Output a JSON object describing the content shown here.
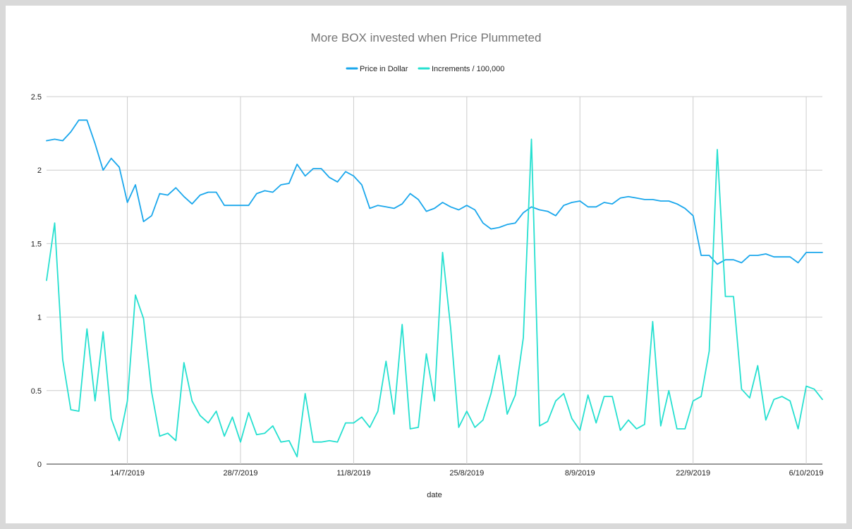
{
  "chart_data": {
    "type": "line",
    "title": "More BOX invested when Price Plummeted",
    "xlabel": "date",
    "ylabel": "",
    "ylim": [
      0,
      2.5
    ],
    "yticks": [
      "0",
      "0.5",
      "1",
      "1.5",
      "2",
      "2.5"
    ],
    "xtick_labels": [
      "14/7/2019",
      "28/7/2019",
      "11/8/2019",
      "25/8/2019",
      "8/9/2019",
      "22/9/2019",
      "6/10/2019"
    ],
    "xtick_positions": [
      10,
      24,
      38,
      52,
      66,
      80,
      94
    ],
    "x_start": "4/7/2019",
    "x_step_days": 1,
    "legend_position": "top",
    "grid": true,
    "series": [
      {
        "name": "Price in Dollar",
        "color": "#1aa7ec",
        "values": [
          2.2,
          2.21,
          2.2,
          2.26,
          2.34,
          2.34,
          2.18,
          2.0,
          2.08,
          2.02,
          1.78,
          1.9,
          1.65,
          1.69,
          1.84,
          1.83,
          1.88,
          1.82,
          1.77,
          1.83,
          1.85,
          1.85,
          1.76,
          1.76,
          1.76,
          1.76,
          1.84,
          1.86,
          1.85,
          1.9,
          1.91,
          2.04,
          1.96,
          2.01,
          2.01,
          1.95,
          1.92,
          1.99,
          1.96,
          1.9,
          1.74,
          1.76,
          1.75,
          1.74,
          1.77,
          1.84,
          1.8,
          1.72,
          1.74,
          1.78,
          1.75,
          1.73,
          1.76,
          1.73,
          1.64,
          1.6,
          1.61,
          1.63,
          1.64,
          1.71,
          1.75,
          1.73,
          1.72,
          1.69,
          1.76,
          1.78,
          1.79,
          1.75,
          1.75,
          1.78,
          1.77,
          1.81,
          1.82,
          1.81,
          1.8,
          1.8,
          1.79,
          1.79,
          1.77,
          1.74,
          1.69,
          1.42,
          1.42,
          1.36,
          1.39,
          1.39,
          1.37,
          1.42,
          1.42,
          1.43,
          1.41,
          1.41,
          1.41,
          1.37,
          1.44,
          1.44,
          1.44
        ]
      },
      {
        "name": "Increments / 100,000",
        "color": "#26e0d0",
        "values": [
          1.25,
          1.64,
          0.71,
          0.37,
          0.36,
          0.92,
          0.43,
          0.9,
          0.31,
          0.16,
          0.43,
          1.15,
          0.99,
          0.49,
          0.19,
          0.21,
          0.16,
          0.69,
          0.43,
          0.33,
          0.28,
          0.36,
          0.19,
          0.32,
          0.15,
          0.35,
          0.2,
          0.21,
          0.26,
          0.15,
          0.16,
          0.05,
          0.48,
          0.15,
          0.15,
          0.16,
          0.15,
          0.28,
          0.28,
          0.32,
          0.25,
          0.36,
          0.7,
          0.34,
          0.95,
          0.24,
          0.25,
          0.75,
          0.43,
          1.44,
          0.93,
          0.25,
          0.36,
          0.25,
          0.3,
          0.48,
          0.74,
          0.34,
          0.47,
          0.86,
          2.21,
          0.26,
          0.29,
          0.43,
          0.48,
          0.31,
          0.23,
          0.47,
          0.28,
          0.46,
          0.46,
          0.23,
          0.3,
          0.24,
          0.27,
          0.97,
          0.26,
          0.5,
          0.24,
          0.24,
          0.43,
          0.46,
          0.77,
          2.14,
          1.14,
          1.14,
          0.51,
          0.45,
          0.67,
          0.3,
          0.44,
          0.46,
          0.43,
          0.24,
          0.53,
          0.51,
          0.44
        ]
      }
    ]
  }
}
